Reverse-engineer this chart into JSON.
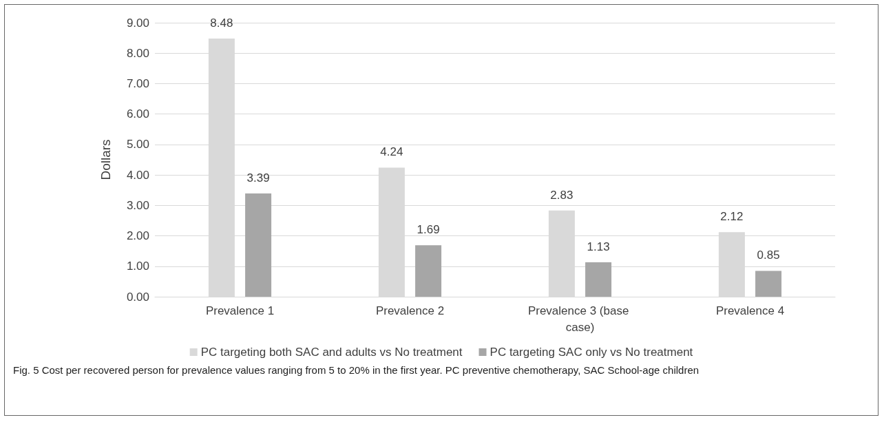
{
  "chart_data": {
    "type": "bar",
    "ylabel": "Dollars",
    "categories": [
      "Prevalence 1",
      "Prevalence 2",
      "Prevalence 3 (base case)",
      "Prevalence 4"
    ],
    "series": [
      {
        "name": "PC targeting both SAC and adults vs No treatment",
        "color": "#d9d9d9",
        "values": [
          8.48,
          4.24,
          2.83,
          2.12
        ]
      },
      {
        "name": "PC targeting SAC only vs No treatment",
        "color": "#a6a6a6",
        "values": [
          3.39,
          1.69,
          1.13,
          0.85
        ]
      }
    ],
    "ylim": [
      0,
      9
    ],
    "yticks": [
      {
        "value": 0,
        "label": "0.00"
      },
      {
        "value": 1,
        "label": "1.00"
      },
      {
        "value": 2,
        "label": "2.00"
      },
      {
        "value": 3,
        "label": "3.00"
      },
      {
        "value": 4,
        "label": "4.00"
      },
      {
        "value": 5,
        "label": "5.00"
      },
      {
        "value": 6,
        "label": "6.00"
      },
      {
        "value": 7,
        "label": "7.00"
      },
      {
        "value": 8,
        "label": "8.00"
      },
      {
        "value": 9,
        "label": "9.00"
      }
    ],
    "grid": "y",
    "legend": "bottom",
    "data_labels": true,
    "annotations": [
      "Fig. 5 Cost per recovered person for prevalence values ranging from 5 to 20% in the first year. PC preventive chemotherapy, SAC School-age children"
    ]
  }
}
